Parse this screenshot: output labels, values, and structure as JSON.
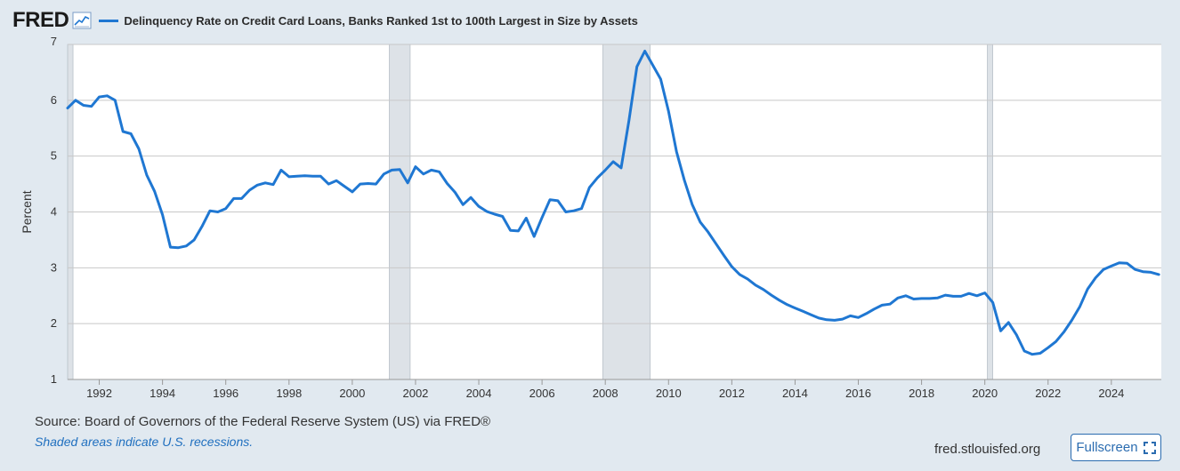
{
  "header": {
    "logo_text": "FRED",
    "logo_icon": "trend-chart-icon",
    "series_title": "Delinquency Rate on Credit Card Loans, Banks Ranked 1st to 100th Largest in Size by Assets"
  },
  "footer": {
    "source": "Source: Board of Governors of the Federal Reserve System (US) via FRED®",
    "recession_note": "Shaded areas indicate U.S. recessions.",
    "site": "fred.stlouisfed.org",
    "fullscreen_label": "Fullscreen",
    "fullscreen_icon": "expand-icon"
  },
  "colors": {
    "line": "#1f77d2",
    "recession": "#dde2e7",
    "grid": "#c8c8c8",
    "background": "#e1e9f0"
  },
  "chart_data": {
    "type": "line",
    "title": "Delinquency Rate on Credit Card Loans, Banks Ranked 1st to 100th Largest in Size by Assets",
    "xlabel": "",
    "ylabel": "Percent",
    "ylim": [
      1,
      7
    ],
    "xlim": [
      1991.0,
      2025.58
    ],
    "y_ticks": [
      1,
      2,
      3,
      4,
      5,
      6,
      7
    ],
    "x_ticks": [
      1992,
      1994,
      1996,
      1998,
      2000,
      2002,
      2004,
      2006,
      2008,
      2010,
      2012,
      2014,
      2016,
      2018,
      2020,
      2022,
      2024
    ],
    "grid": true,
    "recessions": [
      [
        1991.0,
        1991.17
      ],
      [
        2001.17,
        2001.83
      ],
      [
        2007.92,
        2009.42
      ],
      [
        2020.08,
        2020.25
      ]
    ],
    "series": [
      {
        "name": "Delinquency Rate on Credit Card Loans, Banks Ranked 1st to 100th Largest in Size by Assets",
        "x": [
          1991.0,
          1991.25,
          1991.5,
          1991.75,
          1992.0,
          1992.25,
          1992.5,
          1992.75,
          1993.0,
          1993.25,
          1993.5,
          1993.75,
          1994.0,
          1994.25,
          1994.5,
          1994.75,
          1995.0,
          1995.25,
          1995.5,
          1995.75,
          1996.0,
          1996.25,
          1996.5,
          1996.75,
          1997.0,
          1997.25,
          1997.5,
          1997.75,
          1998.0,
          1998.25,
          1998.5,
          1998.75,
          1999.0,
          1999.25,
          1999.5,
          1999.75,
          2000.0,
          2000.25,
          2000.5,
          2000.75,
          2001.0,
          2001.25,
          2001.5,
          2001.75,
          2002.0,
          2002.25,
          2002.5,
          2002.75,
          2003.0,
          2003.25,
          2003.5,
          2003.75,
          2004.0,
          2004.25,
          2004.5,
          2004.75,
          2005.0,
          2005.25,
          2005.5,
          2005.75,
          2006.0,
          2006.25,
          2006.5,
          2006.75,
          2007.0,
          2007.25,
          2007.5,
          2007.75,
          2008.0,
          2008.25,
          2008.5,
          2008.75,
          2009.0,
          2009.25,
          2009.5,
          2009.75,
          2010.0,
          2010.25,
          2010.5,
          2010.75,
          2011.0,
          2011.25,
          2011.5,
          2011.75,
          2012.0,
          2012.25,
          2012.5,
          2012.75,
          2013.0,
          2013.25,
          2013.5,
          2013.75,
          2014.0,
          2014.25,
          2014.5,
          2014.75,
          2015.0,
          2015.25,
          2015.5,
          2015.75,
          2016.0,
          2016.25,
          2016.5,
          2016.75,
          2017.0,
          2017.25,
          2017.5,
          2017.75,
          2018.0,
          2018.25,
          2018.5,
          2018.75,
          2019.0,
          2019.25,
          2019.5,
          2019.75,
          2020.0,
          2020.25,
          2020.5,
          2020.75,
          2021.0,
          2021.25,
          2021.5,
          2021.75,
          2022.0,
          2022.25,
          2022.5,
          2022.75,
          2023.0,
          2023.25,
          2023.5,
          2023.75,
          2024.0,
          2024.25,
          2024.5,
          2024.75,
          2025.0,
          2025.25,
          2025.5
        ],
        "y": [
          5.86,
          6.0,
          5.91,
          5.89,
          6.06,
          6.08,
          6.0,
          5.44,
          5.4,
          5.13,
          4.66,
          4.37,
          3.95,
          3.37,
          3.36,
          3.39,
          3.5,
          3.74,
          4.02,
          4.0,
          4.06,
          4.24,
          4.24,
          4.39,
          4.48,
          4.52,
          4.49,
          4.75,
          4.63,
          4.64,
          4.65,
          4.64,
          4.64,
          4.5,
          4.56,
          4.46,
          4.36,
          4.5,
          4.51,
          4.5,
          4.68,
          4.75,
          4.76,
          4.52,
          4.81,
          4.68,
          4.75,
          4.72,
          4.51,
          4.35,
          4.13,
          4.26,
          4.1,
          4.01,
          3.96,
          3.92,
          3.67,
          3.66,
          3.89,
          3.56,
          3.9,
          4.22,
          4.2,
          4.0,
          4.02,
          4.06,
          4.44,
          4.61,
          4.75,
          4.9,
          4.79,
          5.64,
          6.6,
          6.88,
          6.63,
          6.38,
          5.8,
          5.08,
          4.57,
          4.13,
          3.82,
          3.64,
          3.43,
          3.22,
          3.02,
          2.88,
          2.8,
          2.69,
          2.61,
          2.51,
          2.42,
          2.34,
          2.28,
          2.22,
          2.16,
          2.1,
          2.07,
          2.06,
          2.08,
          2.14,
          2.11,
          2.18,
          2.26,
          2.33,
          2.35,
          2.46,
          2.5,
          2.44,
          2.45,
          2.45,
          2.46,
          2.51,
          2.49,
          2.49,
          2.54,
          2.5,
          2.55,
          2.38,
          1.87,
          2.02,
          1.8,
          1.51,
          1.45,
          1.47,
          1.57,
          1.68,
          1.85,
          2.06,
          2.3,
          2.62,
          2.82,
          2.97,
          3.03,
          3.09,
          3.08,
          2.97,
          2.93,
          2.92,
          2.88
        ]
      }
    ]
  }
}
